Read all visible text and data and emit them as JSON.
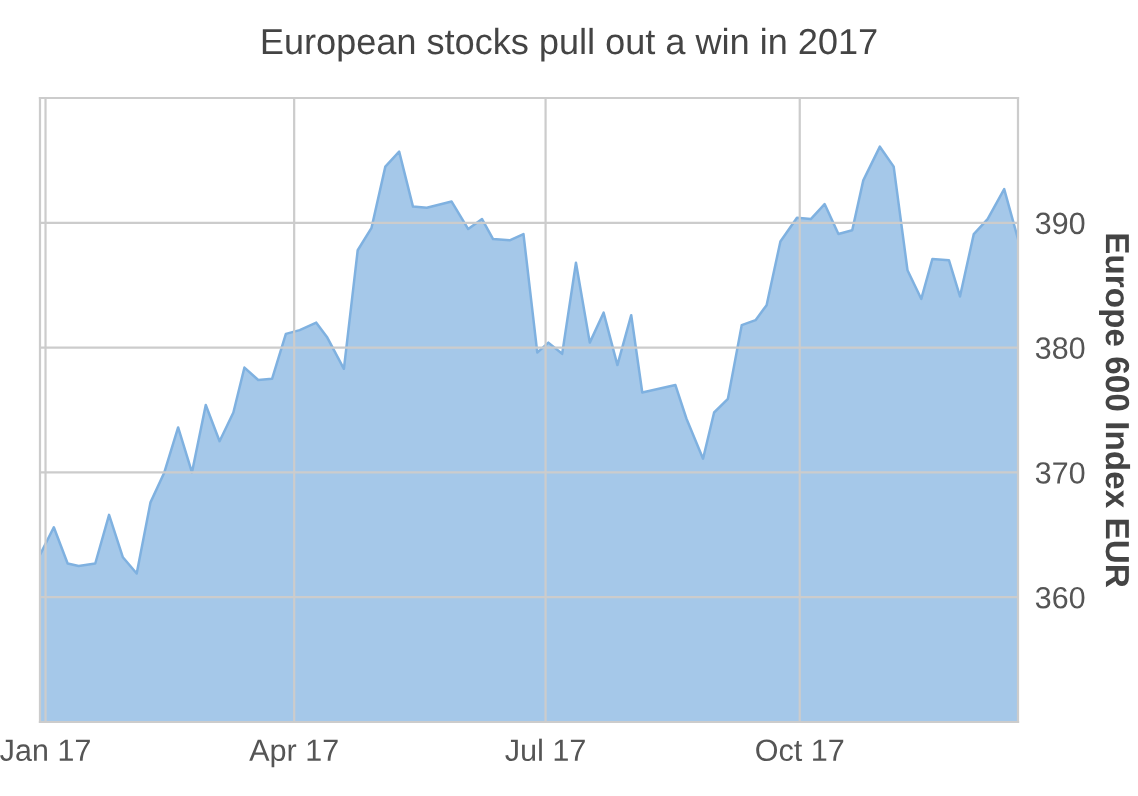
{
  "chart_data": {
    "type": "area",
    "title": "European stocks pull out a win in 2017",
    "ylabel": "Europe 600 Index EUR",
    "x": [
      "2016-12-30",
      "2017-01-04",
      "2017-01-09",
      "2017-01-13",
      "2017-01-19",
      "2017-01-24",
      "2017-01-29",
      "2017-02-03",
      "2017-02-08",
      "2017-02-13",
      "2017-02-18",
      "2017-02-23",
      "2017-02-28",
      "2017-03-05",
      "2017-03-10",
      "2017-03-14",
      "2017-03-19",
      "2017-03-24",
      "2017-03-29",
      "2017-04-03",
      "2017-04-09",
      "2017-04-13",
      "2017-04-19",
      "2017-04-24",
      "2017-04-29",
      "2017-05-04",
      "2017-05-09",
      "2017-05-14",
      "2017-05-19",
      "2017-05-28",
      "2017-06-03",
      "2017-06-08",
      "2017-06-12",
      "2017-06-18",
      "2017-06-23",
      "2017-06-28",
      "2017-07-02",
      "2017-07-07",
      "2017-07-12",
      "2017-07-17",
      "2017-07-22",
      "2017-07-27",
      "2017-08-01",
      "2017-08-05",
      "2017-08-11",
      "2017-08-17",
      "2017-08-21",
      "2017-08-27",
      "2017-08-31",
      "2017-09-05",
      "2017-09-10",
      "2017-09-15",
      "2017-09-19",
      "2017-09-24",
      "2017-09-30",
      "2017-10-05",
      "2017-10-10",
      "2017-10-15",
      "2017-10-20",
      "2017-10-24",
      "2017-10-30",
      "2017-11-04",
      "2017-11-09",
      "2017-11-14",
      "2017-11-18",
      "2017-11-24",
      "2017-11-28",
      "2017-12-03",
      "2017-12-08",
      "2017-12-14",
      "2017-12-19"
    ],
    "series": [
      {
        "color": "#7fb1e0",
        "values": [
          363.4,
          365.6,
          362.7,
          362.5,
          362.7,
          366.6,
          363.2,
          361.9,
          367.6,
          370.0,
          373.6,
          370.0,
          375.4,
          372.5,
          374.8,
          378.4,
          377.4,
          377.5,
          381.1,
          381.4,
          382.0,
          380.8,
          378.3,
          387.8,
          389.6,
          394.5,
          395.7,
          391.3,
          391.2,
          391.7,
          389.5,
          390.3,
          388.7,
          388.6,
          389.1,
          379.6,
          380.4,
          379.5,
          386.8,
          380.4,
          382.8,
          378.6,
          382.6,
          376.4,
          376.7,
          377.0,
          374.3,
          371.1,
          374.8,
          375.9,
          381.8,
          382.2,
          383.4,
          388.5,
          390.4,
          390.3,
          391.5,
          389.1,
          389.4,
          393.4,
          396.1,
          394.5,
          386.2,
          383.9,
          387.1,
          387.0,
          384.1,
          389.1,
          390.3,
          392.7,
          388.7
        ]
      }
    ],
    "xlim": [
      "2016-12-30",
      "2017-12-19"
    ],
    "xticks": [
      {
        "value": "2017-01-01",
        "label": "Jan 17"
      },
      {
        "value": "2017-04-01",
        "label": "Apr 17"
      },
      {
        "value": "2017-07-01",
        "label": "Jul 17"
      },
      {
        "value": "2017-10-01",
        "label": "Oct 17"
      }
    ],
    "ylim": [
      350,
      400
    ],
    "yticks": [
      360,
      370,
      380,
      390
    ],
    "grid": true
  }
}
